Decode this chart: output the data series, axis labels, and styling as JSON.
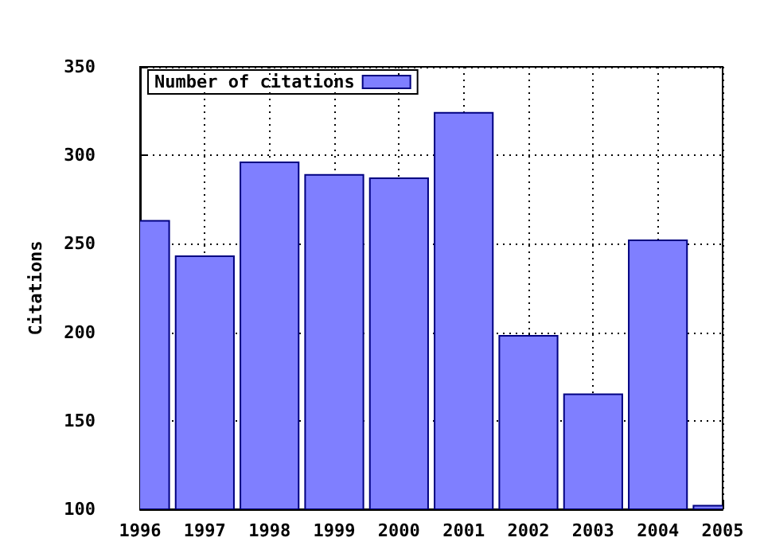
{
  "chart_data": {
    "type": "bar",
    "ylabel": "Citations",
    "x": [
      1996,
      1997,
      1998,
      1999,
      2000,
      2001,
      2002,
      2003,
      2004,
      2005
    ],
    "series": [
      {
        "name": "Number of citations",
        "color": "#7f7fff",
        "values": [
          263,
          243,
          296,
          289,
          287,
          324,
          198,
          165,
          252,
          102
        ]
      }
    ],
    "xlim": [
      1996,
      2005
    ],
    "xticks": [
      1996,
      1997,
      1998,
      1999,
      2000,
      2001,
      2002,
      2003,
      2004,
      2005
    ],
    "ylim": [
      100,
      350
    ],
    "yticks": [
      100,
      150,
      200,
      250,
      300,
      350
    ],
    "grid": true,
    "legend": "top left"
  }
}
